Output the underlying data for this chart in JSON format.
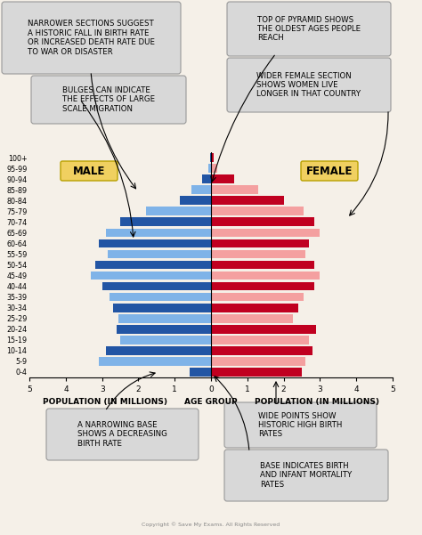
{
  "age_groups": [
    "0-4",
    "5-9",
    "10-14",
    "15-19",
    "20-24",
    "25-29",
    "30-34",
    "35-39",
    "40-44",
    "45-49",
    "50-54",
    "55-59",
    "60-64",
    "65-69",
    "70-74",
    "75-79",
    "80-84",
    "85-89",
    "90-94",
    "95-99",
    "100+"
  ],
  "male": [
    0.6,
    3.1,
    2.9,
    2.5,
    2.6,
    2.55,
    2.7,
    2.8,
    3.0,
    3.3,
    3.2,
    2.85,
    3.1,
    2.9,
    2.5,
    1.8,
    0.85,
    0.55,
    0.25,
    0.08,
    0.02
  ],
  "female": [
    2.5,
    2.6,
    2.8,
    2.7,
    2.9,
    2.25,
    2.4,
    2.55,
    2.85,
    3.0,
    2.85,
    2.6,
    2.7,
    3.0,
    2.85,
    2.55,
    2.0,
    1.3,
    0.65,
    0.18,
    0.08
  ],
  "male_dark": "#2255a4",
  "male_light": "#7fb3e8",
  "female_dark": "#c00020",
  "female_light": "#f4a0a0",
  "bg_color": "#f5f0e8",
  "ann_box_color": "#d8d8d8",
  "ann_edge_color": "#999999",
  "male_box_color": "#f0d060",
  "male_box_edge": "#b8a000",
  "xlim": 5,
  "male_label": "MALE",
  "female_label": "FEMALE",
  "xlabel_left": "POPULATION (IN MILLIONS)",
  "xlabel_right": "POPULATION (IN MILLIONS)",
  "xlabel_center": "AGE GROUP",
  "ann_narrower": "NARROWER SECTIONS SUGGEST\nA HISTORIC FALL IN BIRTH RATE\nOR INCREASED DEATH RATE DUE\nTO WAR OR DISASTER",
  "ann_bulges": "BULGES CAN INDICATE\nTHE EFFECTS OF LARGE\nSCALE MIGRATION",
  "ann_top_pyramid": "TOP OF PYRAMID SHOWS\nTHE OLDEST AGES PEOPLE\nREACH",
  "ann_wider_female": "WIDER FEMALE SECTION\nSHOWS WOMEN LIVE\nLONGER IN THAT COUNTRY",
  "ann_narrowing_base": "A NARROWING BASE\nSHOWS A DECREASING\nBIRTH RATE",
  "ann_wide_points": "WIDE POINTS SHOW\nHISTORIC HIGH BIRTH\nRATES",
  "ann_base_indicates": "BASE INDICATES BIRTH\nAND INFANT MORTALITY\nRATES",
  "copyright": "Copyright © Save My Exams. All Rights Reserved"
}
